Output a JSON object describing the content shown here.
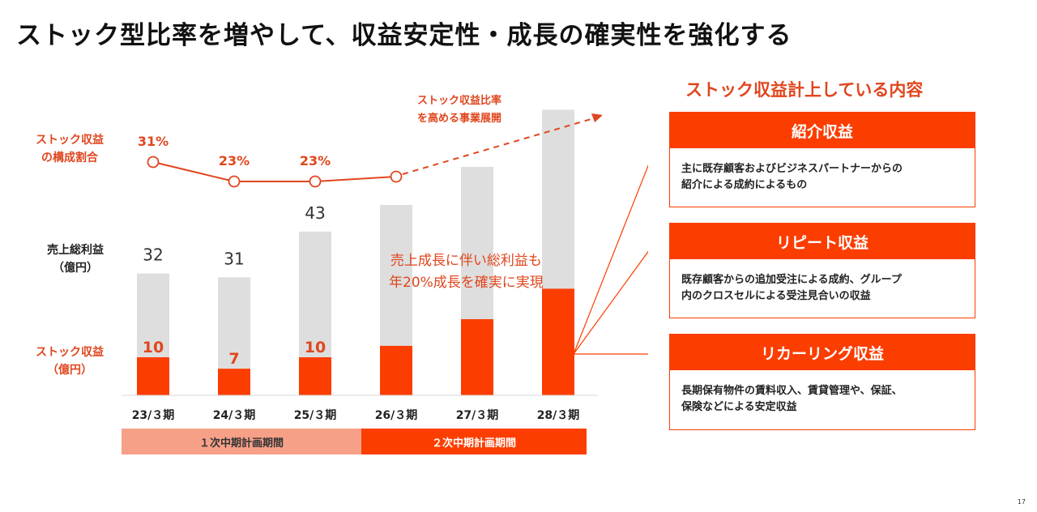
{
  "title": "ストック型比率を増やして、収益安定性・成長の確実性を強化する",
  "labels": {
    "ratio": [
      "ストック収益",
      "の構成割合"
    ],
    "gross": [
      "売上総利益",
      "（億円）"
    ],
    "stock": [
      "ストック収益",
      "（億円）"
    ],
    "expansion": [
      "ストック収益比率",
      "を高める事業展開"
    ],
    "growth_note": [
      "売上成長に伴い総利益も",
      "年20%成長を確実に実現"
    ]
  },
  "periods": [
    "１次中期計画期間",
    "２次中期計画期間"
  ],
  "panel": {
    "heading": "ストック収益計上している内容",
    "cards": [
      {
        "title": "紹介収益",
        "lines": [
          "主に既存顧客およびビジネスパートナーからの",
          "紹介による成約によるもの"
        ]
      },
      {
        "title": "リピート収益",
        "lines": [
          "既存顧客からの追加受注による成約、グループ",
          "内のクロスセルによる受注見合いの収益"
        ]
      },
      {
        "title": "リカーリング収益",
        "lines": [
          "長期保有物件の賃料収入、賃貸管理や、保証、",
          "保険などによる安定収益"
        ]
      }
    ]
  },
  "page_number": "17",
  "colors": {
    "accent": "#fc3d00",
    "gross_bar": "#dedede",
    "line": "#e0461e",
    "period1": "#f7a088"
  },
  "chart_data": {
    "type": "bar",
    "categories": [
      "23/３期",
      "24/３期",
      "25/３期",
      "26/３期",
      "27/３期",
      "28/３期"
    ],
    "series": [
      {
        "name": "売上総利益",
        "values": [
          32,
          31,
          43,
          50,
          60,
          75
        ],
        "labels": [
          "32",
          "31",
          "43",
          "",
          "",
          ""
        ]
      },
      {
        "name": "ストック収益",
        "values": [
          10,
          7,
          10,
          13,
          20,
          28
        ],
        "labels": [
          "10",
          "7",
          "10",
          "",
          "",
          ""
        ]
      }
    ],
    "ratio_line": {
      "name": "ストック収益の構成割合",
      "values": [
        31,
        23,
        23,
        25
      ],
      "labels": [
        "31%",
        "23%",
        "23%",
        ""
      ],
      "projection": "dashed arrow after 26/３期"
    },
    "ylim": [
      0,
      75
    ]
  }
}
